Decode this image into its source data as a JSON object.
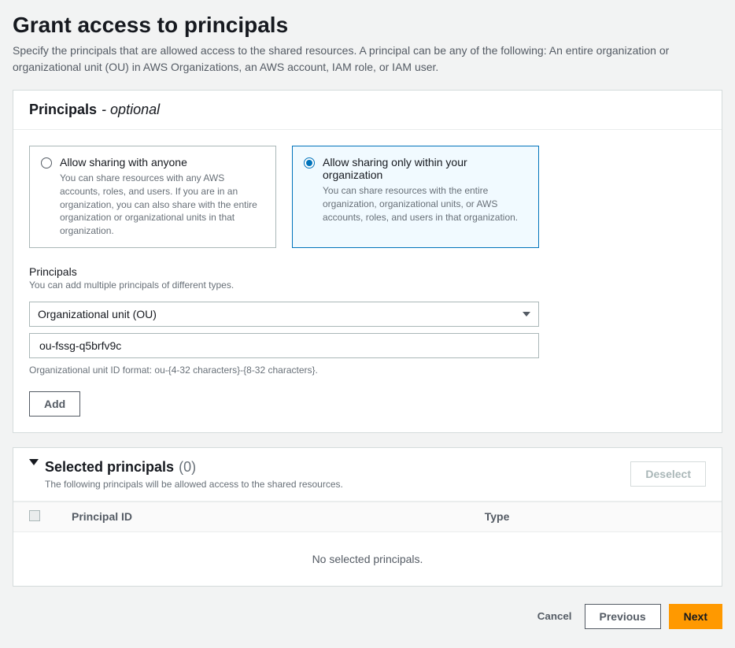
{
  "page": {
    "title": "Grant access to principals",
    "description": "Specify the principals that are allowed access to the shared resources. A principal can be any of the following: An entire organization or organizational unit (OU) in AWS Organizations, an AWS account, IAM role, or IAM user."
  },
  "principalsPanel": {
    "title": "Principals",
    "optionalSuffix": "- optional",
    "options": {
      "anyone": {
        "title": "Allow sharing with anyone",
        "desc": "You can share resources with any AWS accounts, roles, and users. If you are in an organization, you can also share with the entire organization or organizational units in that organization.",
        "selected": false
      },
      "org": {
        "title": "Allow sharing only within your organization",
        "desc": "You can share resources with the entire organization, organizational units, or AWS accounts, roles, and users in that organization.",
        "selected": true
      }
    },
    "principalsField": {
      "label": "Principals",
      "hint": "You can add multiple principals of different types.",
      "typeSelected": "Organizational unit (OU)",
      "idValue": "ou-fssg-q5brfv9c",
      "idHelp": "Organizational unit ID format: ou-{4-32 characters}-{8-32 characters}.",
      "addLabel": "Add"
    }
  },
  "selectedPanel": {
    "title": "Selected principals",
    "count": "(0)",
    "desc": "The following principals will be allowed access to the shared resources.",
    "deselectLabel": "Deselect",
    "columns": {
      "id": "Principal ID",
      "type": "Type"
    },
    "emptyText": "No selected principals."
  },
  "footer": {
    "cancel": "Cancel",
    "previous": "Previous",
    "next": "Next"
  }
}
